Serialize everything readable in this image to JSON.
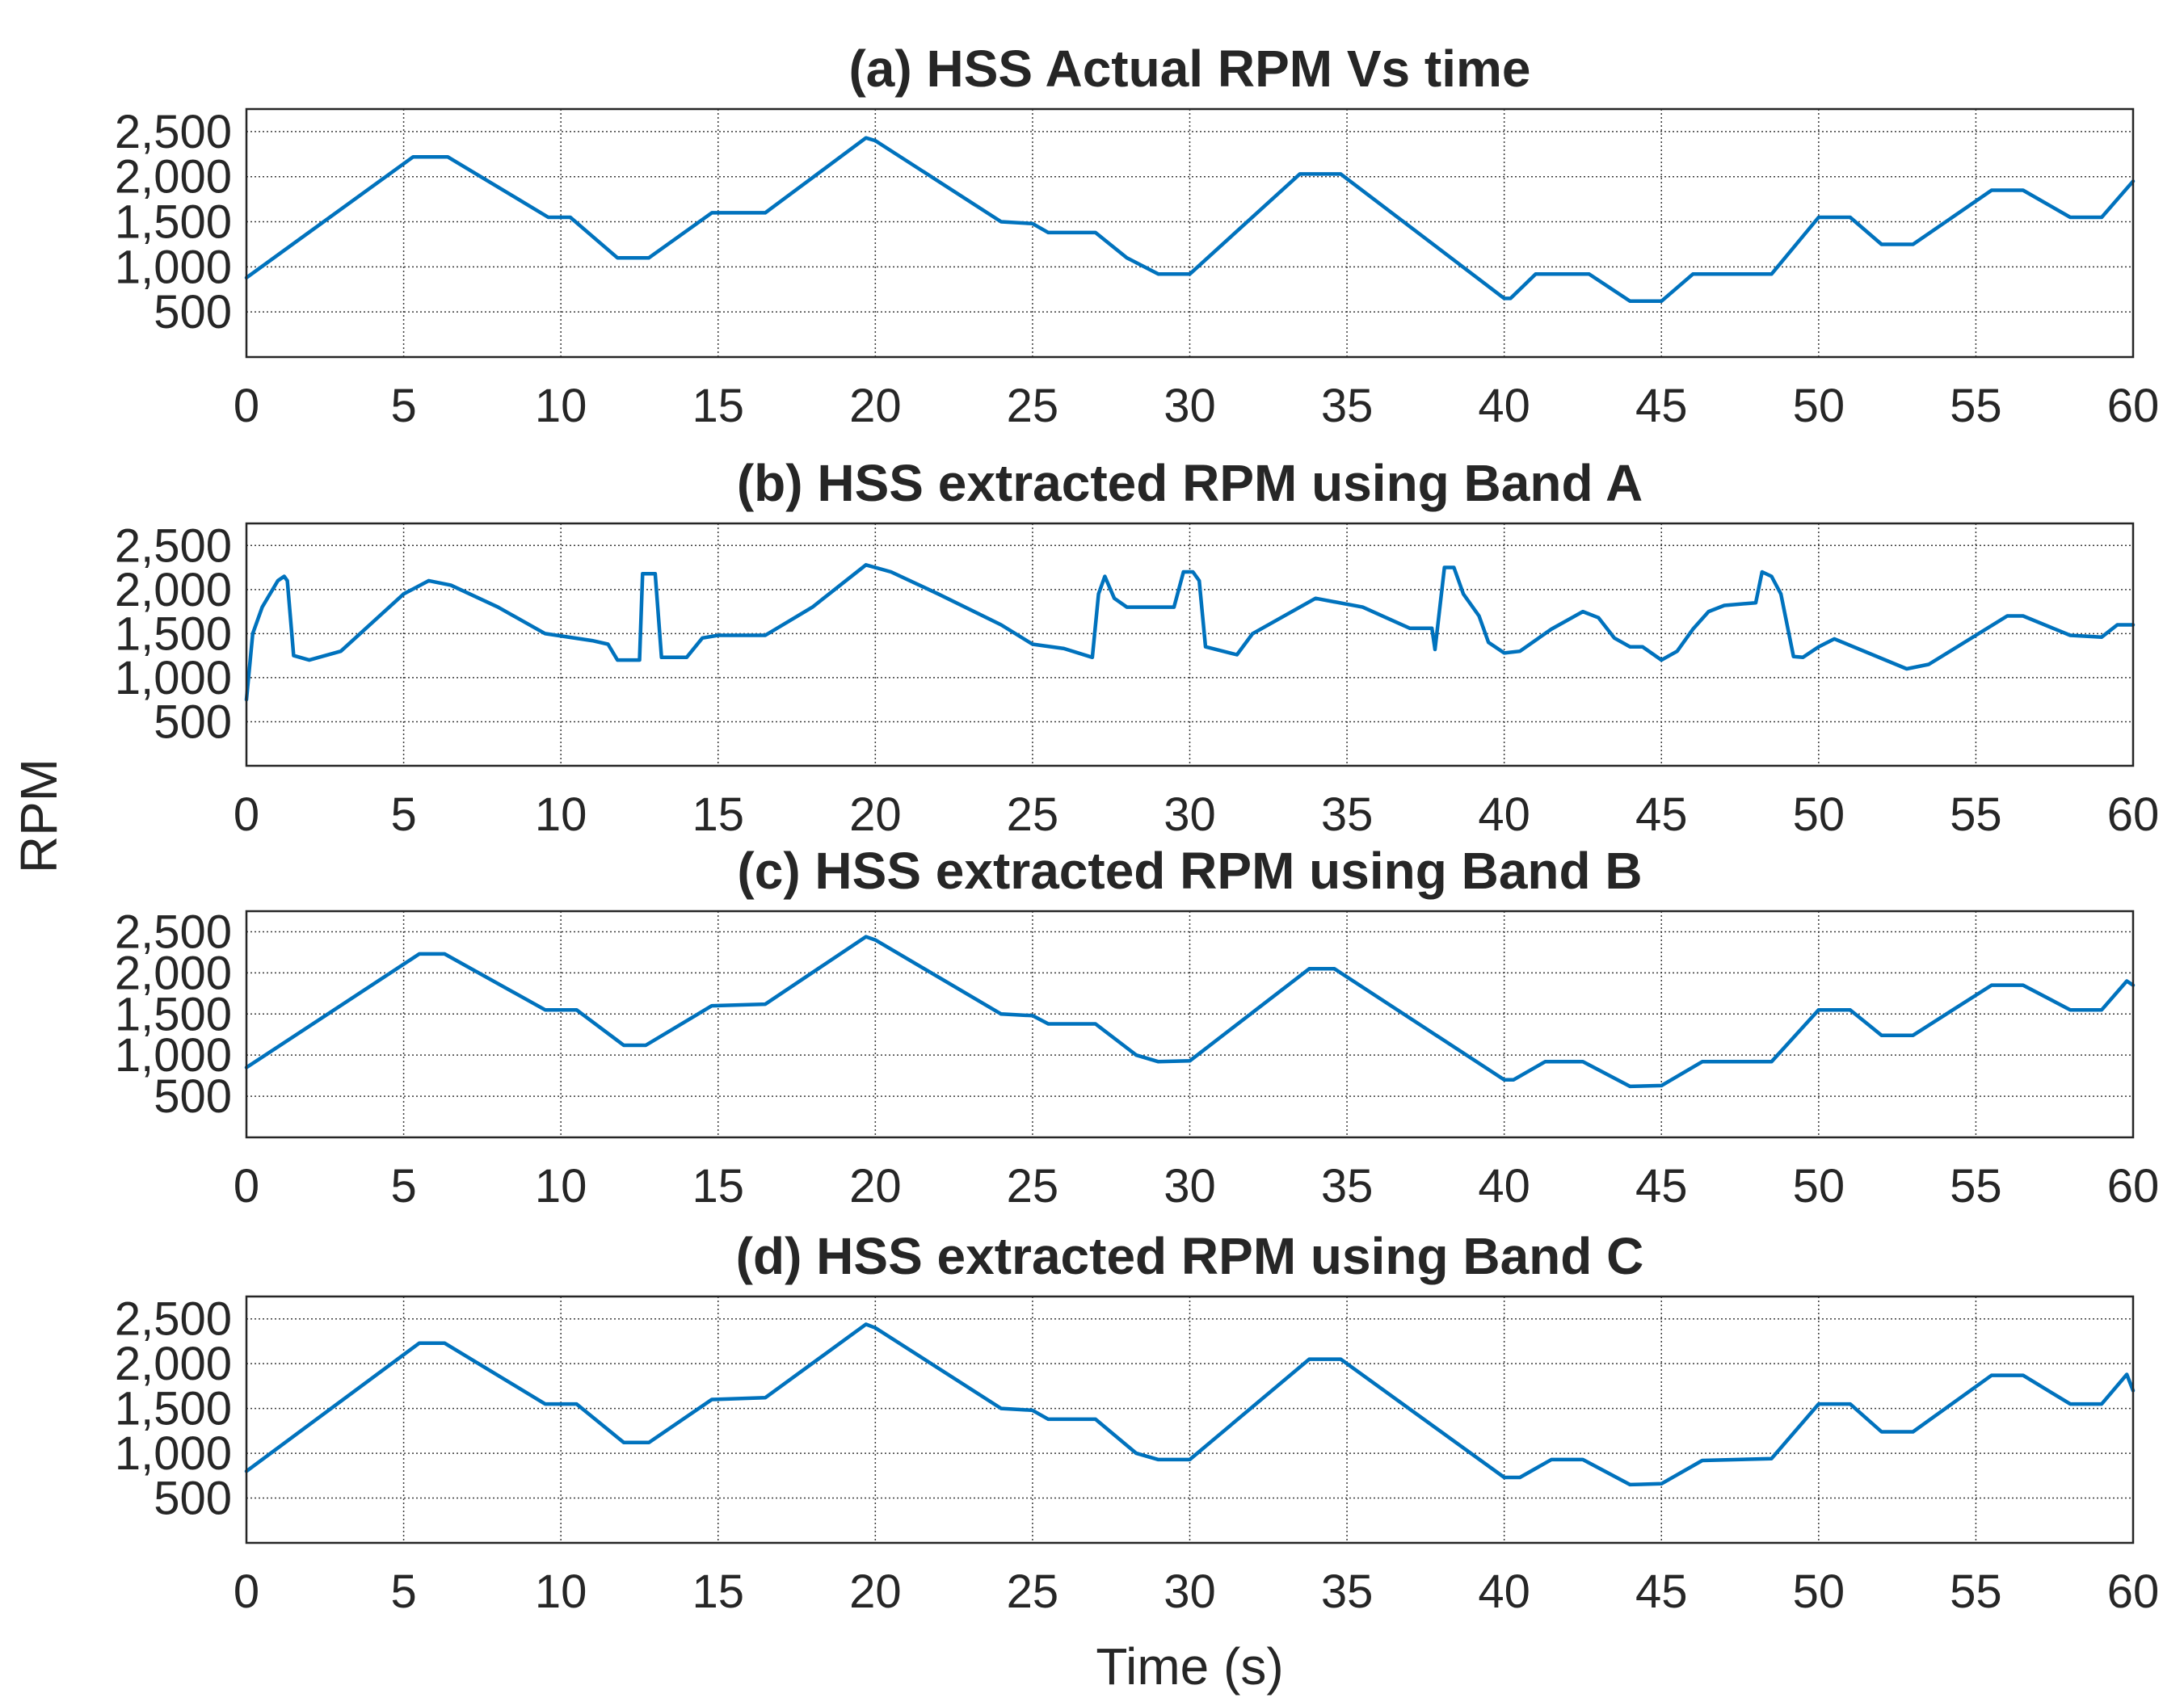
{
  "chart_data": [
    {
      "type": "line",
      "title": "(a) HSS Actual RPM Vs time",
      "xlim": [
        0,
        60
      ],
      "ylim": [
        0,
        2750
      ],
      "xticks": [
        0,
        5,
        10,
        15,
        20,
        25,
        30,
        35,
        40,
        45,
        50,
        55,
        60
      ],
      "yticks": [
        500,
        1000,
        1500,
        2000,
        2500
      ],
      "ytick_labels": [
        "500",
        "1,000",
        "1,500",
        "2,000",
        "2,500"
      ],
      "grid": true,
      "series": [
        {
          "name": "HSS Actual RPM",
          "color": "#0072BD",
          "x": [
            0,
            5.3,
            6.4,
            9.6,
            10.3,
            11.8,
            12.8,
            14.8,
            16.5,
            19.7,
            20,
            24,
            25,
            25.5,
            27,
            28,
            29,
            30,
            33.5,
            34.8,
            40,
            40.2,
            41,
            42.7,
            44,
            45,
            46,
            48.5,
            50,
            51,
            52,
            53,
            55.5,
            56.5,
            58,
            59,
            60
          ],
          "values": [
            880,
            2220,
            2220,
            1550,
            1550,
            1100,
            1100,
            1600,
            1600,
            2430,
            2400,
            1500,
            1480,
            1380,
            1380,
            1100,
            920,
            920,
            2030,
            2030,
            650,
            650,
            920,
            920,
            620,
            620,
            920,
            920,
            1550,
            1550,
            1250,
            1250,
            1850,
            1850,
            1550,
            1550,
            1950
          ]
        }
      ]
    },
    {
      "type": "line",
      "title": "(b) HSS extracted RPM using Band A",
      "xlim": [
        0,
        60
      ],
      "ylim": [
        0,
        2750
      ],
      "xticks": [
        0,
        5,
        10,
        15,
        20,
        25,
        30,
        35,
        40,
        45,
        50,
        55,
        60
      ],
      "yticks": [
        500,
        1000,
        1500,
        2000,
        2500
      ],
      "ytick_labels": [
        "500",
        "1,000",
        "1,500",
        "2,000",
        "2,500"
      ],
      "grid": true,
      "series": [
        {
          "name": "Extracted RPM (Band A)",
          "color": "#0072BD",
          "x": [
            0,
            0.2,
            0.5,
            1,
            1.2,
            1.3,
            1.5,
            2,
            3,
            5,
            5.8,
            6.5,
            8,
            9.5,
            11,
            11.5,
            11.8,
            12.5,
            12.6,
            13,
            13.2,
            14,
            14.5,
            15,
            16.5,
            18,
            19.7,
            20.5,
            22,
            24,
            25,
            26,
            26.9,
            27.1,
            27.3,
            27.6,
            28,
            29.5,
            29.8,
            30.1,
            30.3,
            30.5,
            31.5,
            32,
            34,
            35.5,
            37,
            37.7,
            37.8,
            38.1,
            38.4,
            38.7,
            39.2,
            39.5,
            40,
            40.5,
            41.5,
            42.5,
            43,
            43.5,
            44,
            44.4,
            45,
            45.5,
            46,
            46.5,
            47,
            48,
            48.2,
            48.5,
            48.8,
            49.2,
            49.5,
            50,
            50.5,
            52.8,
            53.5,
            56,
            56.5,
            58,
            59,
            59.5,
            60
          ],
          "values": [
            750,
            1500,
            1800,
            2100,
            2150,
            2100,
            1250,
            1200,
            1300,
            1950,
            2100,
            2050,
            1800,
            1500,
            1420,
            1380,
            1200,
            1200,
            2180,
            2180,
            1230,
            1230,
            1450,
            1480,
            1480,
            1800,
            2280,
            2200,
            1950,
            1600,
            1380,
            1330,
            1230,
            1950,
            2150,
            1900,
            1800,
            1800,
            2200,
            2200,
            2100,
            1350,
            1260,
            1500,
            1900,
            1800,
            1560,
            1560,
            1320,
            2250,
            2250,
            1950,
            1700,
            1400,
            1280,
            1300,
            1550,
            1750,
            1680,
            1450,
            1350,
            1350,
            1200,
            1300,
            1550,
            1750,
            1820,
            1850,
            2200,
            2150,
            1950,
            1240,
            1230,
            1350,
            1440,
            1100,
            1150,
            1700,
            1700,
            1480,
            1460,
            1600,
            1600
          ]
        }
      ]
    },
    {
      "type": "line",
      "title": "(c) HSS extracted RPM using Band B",
      "xlim": [
        0,
        60
      ],
      "ylim": [
        0,
        2750
      ],
      "xticks": [
        0,
        5,
        10,
        15,
        20,
        25,
        30,
        35,
        40,
        45,
        50,
        55,
        60
      ],
      "yticks": [
        500,
        1000,
        1500,
        2000,
        2500
      ],
      "ytick_labels": [
        "500",
        "1,000",
        "1,500",
        "2,000",
        "2,500"
      ],
      "grid": true,
      "series": [
        {
          "name": "Extracted RPM (Band B)",
          "color": "#0072BD",
          "x": [
            0,
            5.5,
            6.3,
            9.5,
            10.5,
            12,
            12.7,
            14.8,
            16.5,
            19.7,
            20,
            24,
            25,
            25.5,
            27,
            28.3,
            29,
            30,
            33.8,
            34.6,
            40,
            40.3,
            41.3,
            42.5,
            44,
            45,
            46.3,
            48.5,
            50,
            51,
            52,
            53,
            55.5,
            56.5,
            58,
            59,
            59.8,
            60
          ],
          "values": [
            850,
            2230,
            2230,
            1550,
            1550,
            1120,
            1120,
            1600,
            1620,
            2440,
            2400,
            1500,
            1480,
            1380,
            1380,
            1000,
            920,
            930,
            2050,
            2050,
            700,
            700,
            920,
            920,
            620,
            630,
            920,
            920,
            1550,
            1550,
            1240,
            1240,
            1850,
            1850,
            1550,
            1550,
            1900,
            1850
          ]
        }
      ]
    },
    {
      "type": "line",
      "title": "(d) HSS extracted RPM using Band C",
      "xlim": [
        0,
        60
      ],
      "ylim": [
        0,
        2750
      ],
      "xticks": [
        0,
        5,
        10,
        15,
        20,
        25,
        30,
        35,
        40,
        45,
        50,
        55,
        60
      ],
      "yticks": [
        500,
        1000,
        1500,
        2000,
        2500
      ],
      "ytick_labels": [
        "500",
        "1,000",
        "1,500",
        "2,000",
        "2,500"
      ],
      "grid": true,
      "xlabel": "Time (s)",
      "series": [
        {
          "name": "Extracted RPM (Band C)",
          "color": "#0072BD",
          "x": [
            0,
            5.5,
            6.3,
            9.5,
            10.5,
            12,
            12.8,
            14.8,
            16.5,
            19.7,
            20,
            24,
            25,
            25.5,
            27,
            28.3,
            29,
            30,
            33.8,
            34.8,
            40,
            40.5,
            41.5,
            42.5,
            44,
            45,
            46.3,
            48.5,
            50,
            51,
            52,
            53,
            55.5,
            56.5,
            58,
            59,
            59.8,
            60
          ],
          "values": [
            800,
            2230,
            2230,
            1550,
            1550,
            1120,
            1120,
            1600,
            1620,
            2440,
            2400,
            1500,
            1480,
            1380,
            1380,
            1000,
            930,
            930,
            2050,
            2050,
            730,
            730,
            930,
            930,
            650,
            660,
            920,
            940,
            1550,
            1550,
            1240,
            1240,
            1870,
            1870,
            1550,
            1550,
            1880,
            1700
          ]
        }
      ]
    }
  ],
  "shared_ylabel": "RPM"
}
